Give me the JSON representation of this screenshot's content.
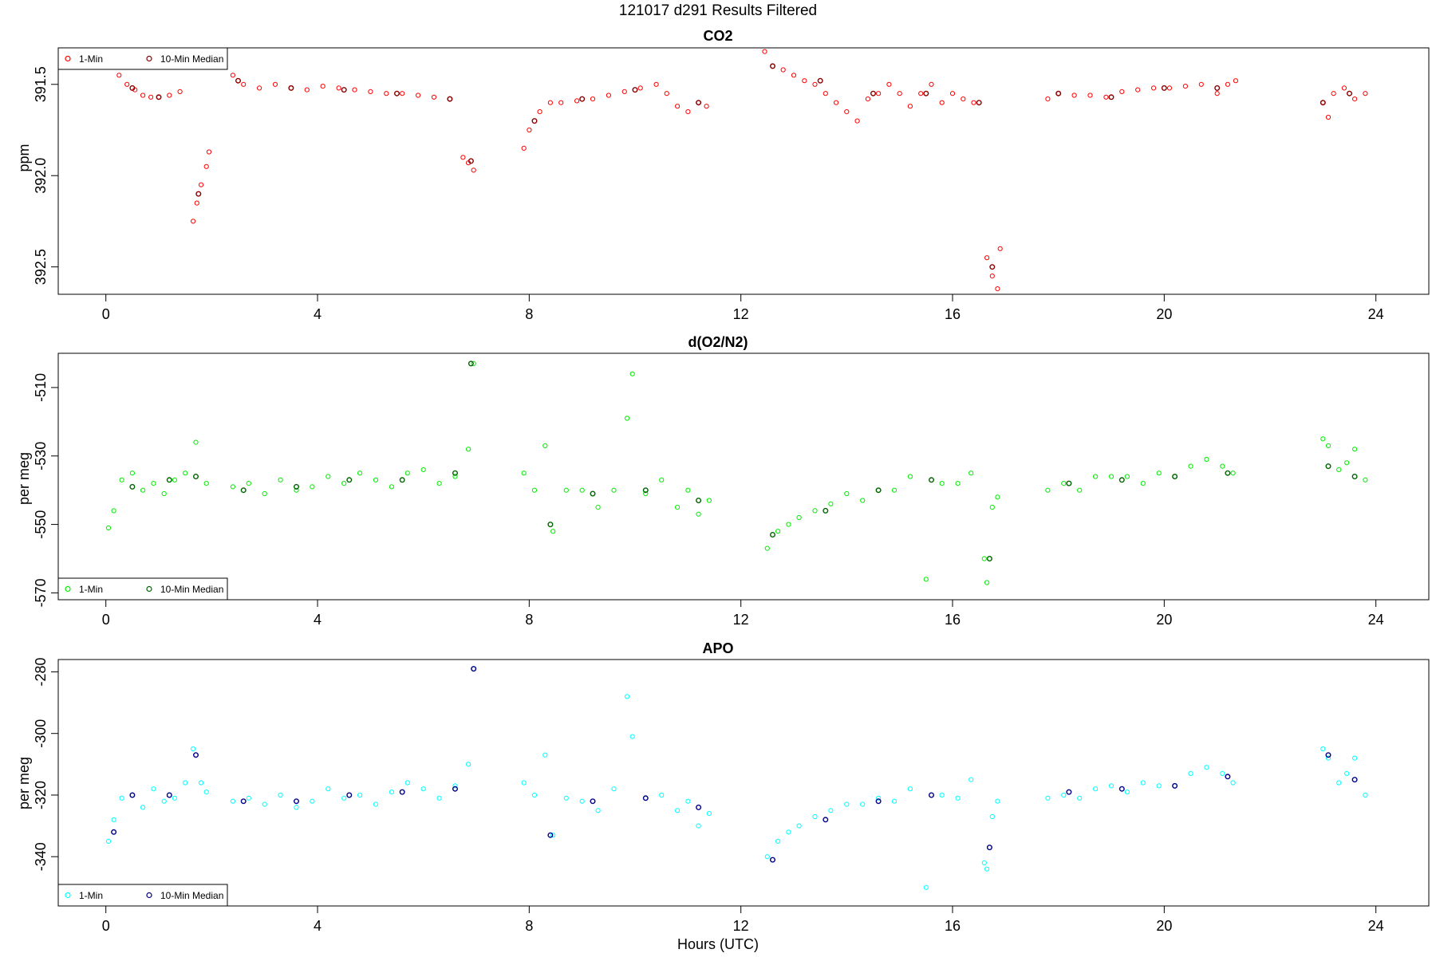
{
  "page_title": "121017   d291   Results Filtered",
  "x_axis_label": "Hours (UTC)",
  "legend_labels": [
    "1-Min",
    "10-Min Median"
  ],
  "chart_data": [
    {
      "type": "scatter",
      "title": "CO2",
      "ylabel": "ppm",
      "xlim": [
        -0.9,
        25.0
      ],
      "ylim": [
        391.3,
        392.65
      ],
      "ylim_note": "inverted",
      "x_ticks": [
        0,
        4,
        8,
        12,
        16,
        20,
        24
      ],
      "y_ticks": [
        391.5,
        392.0,
        392.5
      ],
      "y_tick_labels": [
        "391.5",
        "392.0",
        "392.5"
      ],
      "legend": "top-left",
      "series": [
        {
          "name": "1-Min",
          "color": "#ff0000",
          "x": [
            0.05,
            0.15,
            0.25,
            0.4,
            0.55,
            0.7,
            0.85,
            1.0,
            1.2,
            1.4,
            1.65,
            1.72,
            1.8,
            1.9,
            1.95,
            2.4,
            2.6,
            2.9,
            3.2,
            3.5,
            3.8,
            4.1,
            4.4,
            4.7,
            5.0,
            5.3,
            5.6,
            5.9,
            6.2,
            6.5,
            6.75,
            6.85,
            6.95,
            7.9,
            8.0,
            8.2,
            8.4,
            8.6,
            8.9,
            9.2,
            9.5,
            9.8,
            10.1,
            10.4,
            10.6,
            10.8,
            11.0,
            11.2,
            11.35,
            12.45,
            12.6,
            12.8,
            13.0,
            13.2,
            13.4,
            13.6,
            13.8,
            14.0,
            14.2,
            14.4,
            14.6,
            14.8,
            15.0,
            15.2,
            15.4,
            15.6,
            15.8,
            16.0,
            16.2,
            16.4,
            16.65,
            16.75,
            16.85,
            16.9,
            17.8,
            18.0,
            18.3,
            18.6,
            18.9,
            19.2,
            19.5,
            19.8,
            20.1,
            20.4,
            20.7,
            21.0,
            21.2,
            21.35,
            23.0,
            23.1,
            23.2,
            23.4,
            23.6,
            23.8
          ],
          "y": [
            391.35,
            391.4,
            391.45,
            391.5,
            391.53,
            391.56,
            391.57,
            391.57,
            391.56,
            391.54,
            392.25,
            392.15,
            392.05,
            391.95,
            391.87,
            391.45,
            391.5,
            391.52,
            391.5,
            391.52,
            391.53,
            391.51,
            391.52,
            391.53,
            391.54,
            391.55,
            391.55,
            391.56,
            391.57,
            391.58,
            391.9,
            391.93,
            391.97,
            391.85,
            391.75,
            391.65,
            391.6,
            391.6,
            391.59,
            391.58,
            391.56,
            391.54,
            391.52,
            391.5,
            391.55,
            391.62,
            391.65,
            391.6,
            391.62,
            391.32,
            391.4,
            391.42,
            391.45,
            391.48,
            391.5,
            391.55,
            391.6,
            391.65,
            391.7,
            391.58,
            391.55,
            391.5,
            391.55,
            391.62,
            391.55,
            391.5,
            391.6,
            391.55,
            391.58,
            391.6,
            392.45,
            392.55,
            392.62,
            392.4,
            391.58,
            391.55,
            391.56,
            391.56,
            391.57,
            391.54,
            391.53,
            391.52,
            391.52,
            391.51,
            391.5,
            391.55,
            391.5,
            391.48,
            391.6,
            391.68,
            391.55,
            391.52,
            391.58,
            391.55
          ]
        },
        {
          "name": "10-Min Median",
          "color": "#8b0000",
          "x": [
            0.5,
            1.0,
            1.75,
            2.5,
            3.5,
            4.5,
            5.5,
            6.5,
            6.9,
            8.1,
            9.0,
            10.0,
            11.2,
            12.6,
            13.5,
            14.5,
            15.5,
            16.5,
            16.75,
            18.0,
            19.0,
            20.0,
            21.0,
            23.0,
            23.5
          ],
          "y": [
            391.52,
            391.57,
            392.1,
            391.48,
            391.52,
            391.53,
            391.55,
            391.58,
            391.92,
            391.7,
            391.58,
            391.53,
            391.6,
            391.4,
            391.48,
            391.55,
            391.55,
            391.6,
            392.5,
            391.55,
            391.57,
            391.52,
            391.52,
            391.6,
            391.55
          ]
        }
      ]
    },
    {
      "type": "scatter",
      "title": "d(O2/N2)",
      "ylabel": "per meg",
      "xlim": [
        -0.9,
        25.0
      ],
      "ylim": [
        -572,
        -500
      ],
      "x_ticks": [
        0,
        4,
        8,
        12,
        16,
        20,
        24
      ],
      "y_ticks": [
        -570,
        -550,
        -530,
        -510
      ],
      "y_tick_labels": [
        "-570",
        "-550",
        "-530",
        "-510"
      ],
      "legend": "bottom-left",
      "series": [
        {
          "name": "1-Min",
          "color": "#00ee00",
          "x": [
            0.05,
            0.15,
            0.3,
            0.5,
            0.7,
            0.9,
            1.1,
            1.3,
            1.5,
            1.7,
            1.9,
            2.4,
            2.7,
            3.0,
            3.3,
            3.6,
            3.9,
            4.2,
            4.5,
            4.8,
            5.1,
            5.4,
            5.7,
            6.0,
            6.3,
            6.6,
            6.85,
            6.95,
            7.9,
            8.1,
            8.3,
            8.45,
            8.7,
            9.0,
            9.3,
            9.6,
            9.85,
            9.95,
            10.2,
            10.5,
            10.8,
            11.0,
            11.2,
            11.4,
            12.5,
            12.7,
            12.9,
            13.1,
            13.4,
            13.7,
            14.0,
            14.3,
            14.6,
            14.9,
            15.2,
            15.5,
            15.8,
            16.1,
            16.35,
            16.6,
            16.65,
            16.75,
            16.85,
            17.8,
            18.1,
            18.4,
            18.7,
            19.0,
            19.3,
            19.6,
            19.9,
            20.2,
            20.5,
            20.8,
            21.1,
            21.3,
            23.0,
            23.1,
            23.3,
            23.45,
            23.6,
            23.8
          ],
          "y": [
            -551,
            -546,
            -537,
            -535,
            -540,
            -538,
            -541,
            -537,
            -535,
            -526,
            -538,
            -539,
            -538,
            -541,
            -537,
            -540,
            -539,
            -536,
            -538,
            -535,
            -537,
            -539,
            -535,
            -534,
            -538,
            -536,
            -528,
            -503,
            -535,
            -540,
            -527,
            -552,
            -540,
            -540,
            -545,
            -540,
            -519,
            -506,
            -541,
            -537,
            -545,
            -540,
            -547,
            -543,
            -557,
            -552,
            -550,
            -548,
            -546,
            -544,
            -541,
            -543,
            -540,
            -540,
            -536,
            -566,
            -538,
            -538,
            -535,
            -560,
            -567,
            -545,
            -542,
            -540,
            -538,
            -540,
            -536,
            -536,
            -536,
            -538,
            -535,
            -536,
            -533,
            -531,
            -533,
            -535,
            -525,
            -527,
            -534,
            -532,
            -528,
            -537
          ]
        },
        {
          "name": "10-Min Median",
          "color": "#006400",
          "x": [
            0.5,
            1.2,
            1.7,
            2.6,
            3.6,
            4.6,
            5.6,
            6.6,
            6.9,
            8.4,
            9.2,
            10.2,
            11.2,
            12.6,
            13.6,
            14.6,
            15.6,
            16.7,
            18.2,
            19.2,
            20.2,
            21.2,
            23.1,
            23.6
          ],
          "y": [
            -539,
            -537,
            -536,
            -540,
            -539,
            -537,
            -537,
            -535,
            -503,
            -550,
            -541,
            -540,
            -543,
            -553,
            -546,
            -540,
            -537,
            -560,
            -538,
            -537,
            -536,
            -535,
            -533,
            -536
          ]
        }
      ]
    },
    {
      "type": "scatter",
      "title": "APO",
      "ylabel": "per meg",
      "xlim": [
        -0.9,
        25.0
      ],
      "ylim": [
        -356,
        -276
      ],
      "x_ticks": [
        0,
        4,
        8,
        12,
        16,
        20,
        24
      ],
      "y_ticks": [
        -340,
        -320,
        -300,
        -280
      ],
      "y_tick_labels": [
        "-340",
        "-320",
        "-300",
        "-280"
      ],
      "legend": "bottom-left",
      "series": [
        {
          "name": "1-Min",
          "color": "#00ffff",
          "x": [
            0.05,
            0.15,
            0.3,
            0.5,
            0.7,
            0.9,
            1.1,
            1.3,
            1.5,
            1.65,
            1.8,
            1.9,
            2.4,
            2.7,
            3.0,
            3.3,
            3.6,
            3.9,
            4.2,
            4.5,
            4.8,
            5.1,
            5.4,
            5.7,
            6.0,
            6.3,
            6.6,
            6.85,
            6.95,
            7.9,
            8.1,
            8.3,
            8.45,
            8.7,
            9.0,
            9.3,
            9.6,
            9.85,
            9.95,
            10.2,
            10.5,
            10.8,
            11.0,
            11.2,
            11.4,
            12.5,
            12.7,
            12.9,
            13.1,
            13.4,
            13.7,
            14.0,
            14.3,
            14.6,
            14.9,
            15.2,
            15.5,
            15.8,
            16.1,
            16.35,
            16.6,
            16.65,
            16.75,
            16.85,
            17.8,
            18.1,
            18.4,
            18.7,
            19.0,
            19.3,
            19.6,
            19.9,
            20.2,
            20.5,
            20.8,
            21.1,
            21.3,
            23.0,
            23.1,
            23.3,
            23.45,
            23.6,
            23.8
          ],
          "y": [
            -335,
            -328,
            -321,
            -320,
            -324,
            -318,
            -322,
            -321,
            -316,
            -305,
            -316,
            -319,
            -322,
            -321,
            -323,
            -320,
            -324,
            -322,
            -318,
            -321,
            -320,
            -323,
            -319,
            -316,
            -318,
            -321,
            -317,
            -310,
            -279,
            -316,
            -320,
            -307,
            -333,
            -321,
            -322,
            -325,
            -318,
            -288,
            -301,
            -321,
            -320,
            -325,
            -322,
            -330,
            -326,
            -340,
            -335,
            -332,
            -330,
            -327,
            -325,
            -323,
            -323,
            -321,
            -322,
            -318,
            -350,
            -320,
            -321,
            -315,
            -342,
            -344,
            -327,
            -322,
            -321,
            -320,
            -321,
            -318,
            -317,
            -319,
            -316,
            -317,
            -317,
            -313,
            -311,
            -313,
            -316,
            -305,
            -308,
            -316,
            -313,
            -308,
            -320
          ]
        },
        {
          "name": "10-Min Median",
          "color": "#00008b",
          "x": [
            0.15,
            0.5,
            1.2,
            1.7,
            2.6,
            3.6,
            4.6,
            5.6,
            6.6,
            6.95,
            8.4,
            9.2,
            10.2,
            11.2,
            12.6,
            13.6,
            14.6,
            15.6,
            16.7,
            18.2,
            19.2,
            20.2,
            21.2,
            23.1,
            23.6
          ],
          "y": [
            -332,
            -320,
            -320,
            -307,
            -322,
            -322,
            -320,
            -319,
            -318,
            -279,
            -333,
            -322,
            -321,
            -324,
            -341,
            -328,
            -322,
            -320,
            -337,
            -319,
            -318,
            -317,
            -314,
            -307,
            -315
          ]
        }
      ]
    }
  ]
}
